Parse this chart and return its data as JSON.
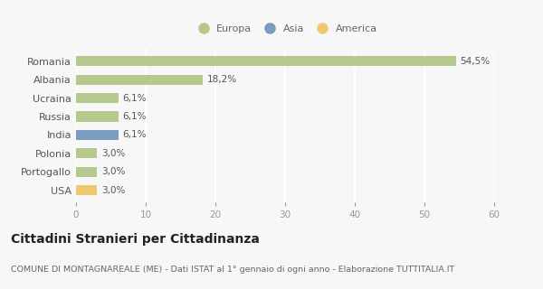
{
  "categories": [
    "Romania",
    "Albania",
    "Ucraina",
    "Russia",
    "India",
    "Polonia",
    "Portogallo",
    "USA"
  ],
  "values": [
    54.5,
    18.2,
    6.1,
    6.1,
    6.1,
    3.0,
    3.0,
    3.0
  ],
  "labels": [
    "54,5%",
    "18,2%",
    "6,1%",
    "6,1%",
    "6,1%",
    "3,0%",
    "3,0%",
    "3,0%"
  ],
  "colors": [
    "#b5c98e",
    "#b5c98e",
    "#b5c98e",
    "#b5c98e",
    "#7b9bbf",
    "#b5c98e",
    "#b5c98e",
    "#f0c96e"
  ],
  "legend_labels": [
    "Europa",
    "Asia",
    "America"
  ],
  "legend_colors": [
    "#b5c98e",
    "#7b9bbf",
    "#f0c96e"
  ],
  "xlim": [
    0,
    60
  ],
  "xticks": [
    0,
    10,
    20,
    30,
    40,
    50,
    60
  ],
  "title": "Cittadini Stranieri per Cittadinanza",
  "subtitle": "COMUNE DI MONTAGNAREALE (ME) - Dati ISTAT al 1° gennaio di ogni anno - Elaborazione TUTTITALIA.IT",
  "bg_color": "#f7f7f7",
  "grid_color": "#ffffff",
  "bar_height": 0.55,
  "label_fontsize": 7.5,
  "tick_fontsize": 7.5,
  "ytick_fontsize": 8,
  "title_fontsize": 10,
  "subtitle_fontsize": 6.8,
  "legend_fontsize": 8
}
